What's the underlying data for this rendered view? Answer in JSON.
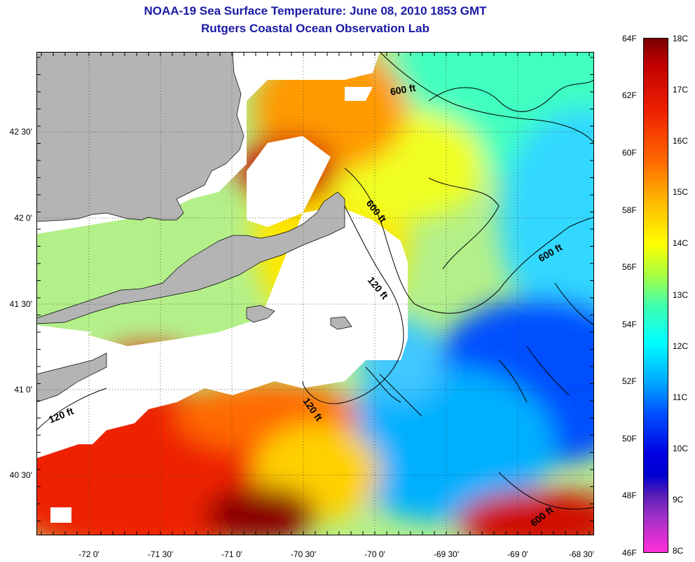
{
  "title": "NOAA-19 Sea Surface Temperature:  June 08, 2010 1853 GMT",
  "subtitle": "Rutgers Coastal Ocean Observation Lab",
  "lat_labels": [
    "42 30'",
    "42 0'",
    "41 30'",
    "41 0'",
    "40 30'"
  ],
  "lon_labels": [
    "-72 0'",
    "-71 30'",
    "-71 0'",
    "-70 30'",
    "-70 0'",
    "-69 30'",
    "-69 0'",
    "-68 30'"
  ],
  "contour_labels": [
    "600 ft",
    "600 ft",
    "600 ft",
    "600 ft",
    "120 ft",
    "120 ft",
    "120 ft"
  ],
  "colorbar": {
    "fahrenheit": [
      "64F",
      "62F",
      "60F",
      "58F",
      "56F",
      "54F",
      "52F",
      "50F",
      "48F",
      "46F"
    ],
    "celsius": [
      "18C",
      "17C",
      "16C",
      "15C",
      "14C",
      "13C",
      "12C",
      "11C",
      "10C",
      "9C",
      "8C"
    ]
  },
  "colors": {
    "title": "#1a1aa6",
    "land": "#b4b4b4",
    "cloud": "#ffffff"
  }
}
